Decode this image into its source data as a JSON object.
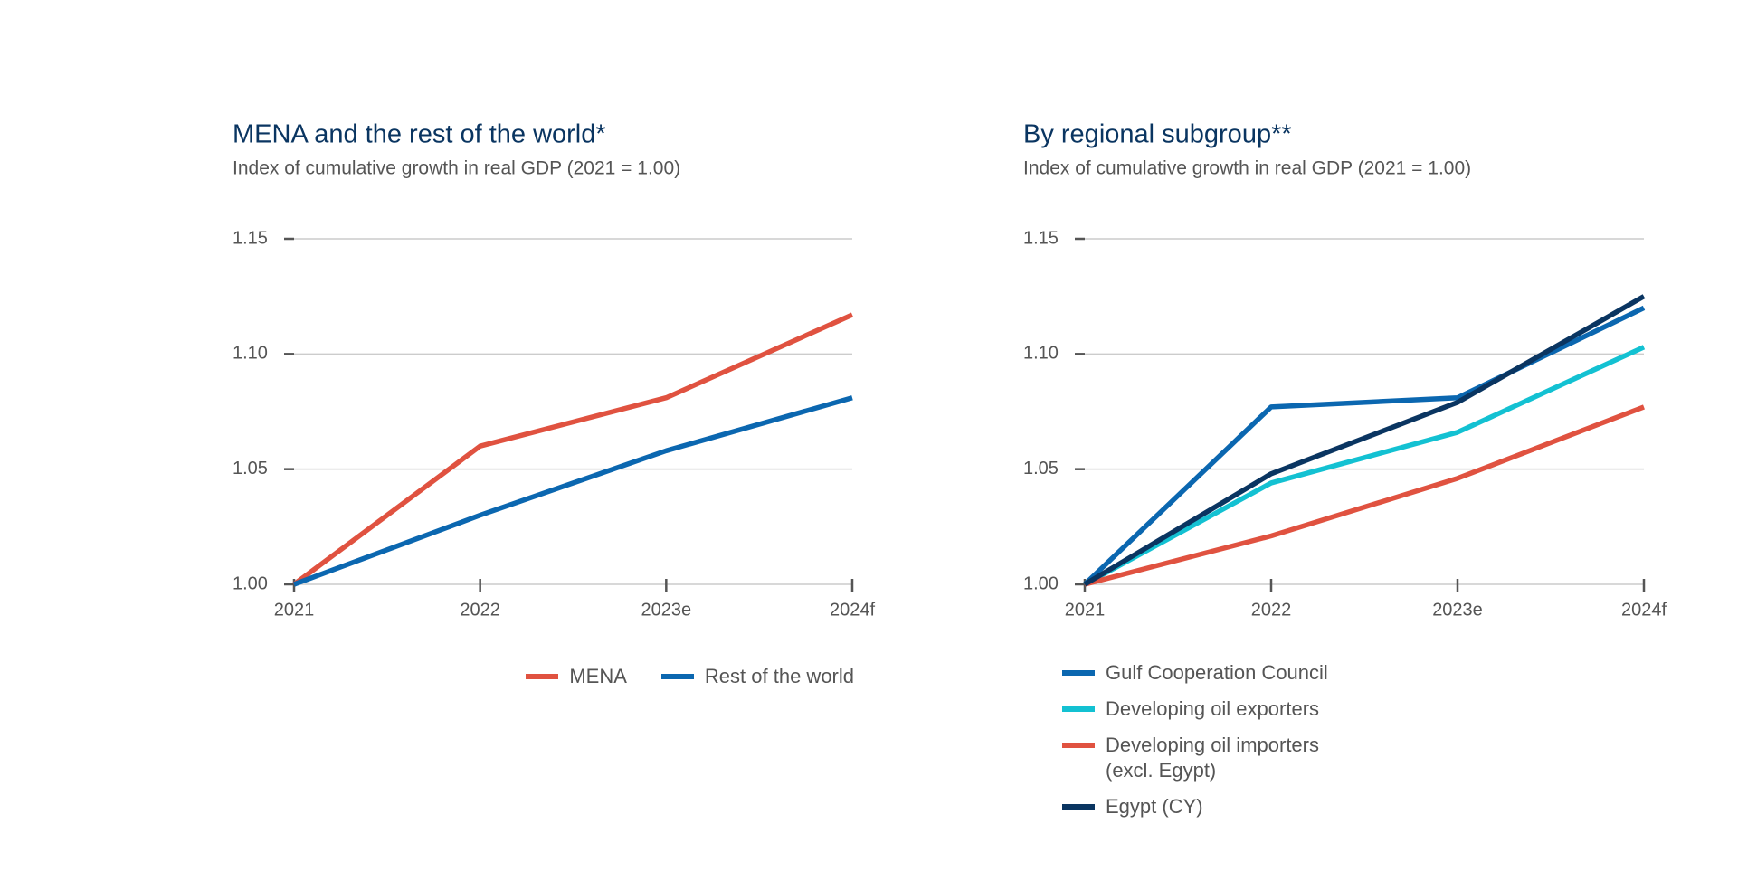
{
  "chart_data": [
    {
      "type": "line",
      "title": "MENA and the rest of the world*",
      "subtitle": "Index of cumulative growth in real GDP (2021 = 1.00)",
      "categories": [
        "2021",
        "2022",
        "2023e",
        "2024f"
      ],
      "series": [
        {
          "name": "MENA",
          "color": "#e05240",
          "values": [
            1.0,
            1.06,
            1.081,
            1.117
          ]
        },
        {
          "name": "Rest of the world",
          "color": "#0b67b0",
          "values": [
            1.0,
            1.03,
            1.058,
            1.081
          ]
        }
      ],
      "ylim": [
        1.0,
        1.15
      ],
      "yticks": [
        {
          "value": 1.0,
          "label": "1.00"
        },
        1.05,
        {
          "value": 1.1,
          "label": "1.10"
        },
        1.15
      ],
      "grid": true
    },
    {
      "type": "line",
      "title": "By regional subgroup**",
      "subtitle": "Index of cumulative growth in real GDP (2021 = 1.00)",
      "categories": [
        "2021",
        "2022",
        "2023e",
        "2024f"
      ],
      "series": [
        {
          "name": "Gulf Cooperation Council",
          "color": "#0b67b0",
          "values": [
            1.0,
            1.077,
            1.081,
            1.12
          ]
        },
        {
          "name": "Developing oil exporters",
          "color": "#13c1d2",
          "values": [
            1.0,
            1.044,
            1.066,
            1.103
          ]
        },
        {
          "name": "Developing oil importers (excl. Egypt)",
          "color": "#e05240",
          "values": [
            1.0,
            1.021,
            1.046,
            1.077
          ]
        },
        {
          "name": "Egypt (CY)",
          "color": "#0a3561",
          "values": [
            1.0,
            1.048,
            1.079,
            1.125
          ]
        }
      ],
      "ylim": [
        1.0,
        1.15
      ],
      "yticks": [
        {
          "value": 1.0,
          "label": "1.00"
        },
        1.05,
        {
          "value": 1.1,
          "label": "1.10"
        },
        1.15
      ],
      "grid": true
    }
  ]
}
